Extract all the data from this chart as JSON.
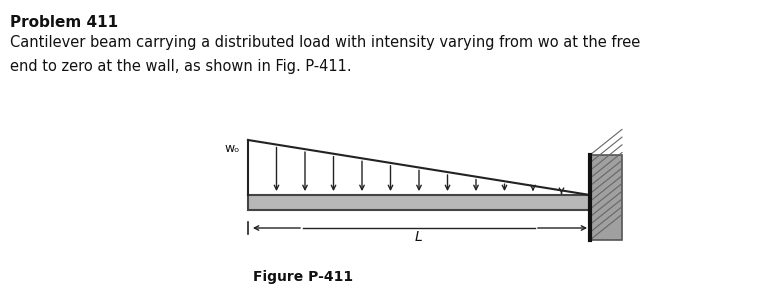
{
  "title": "Problem 411",
  "desc1": "Cantilever beam carrying a distributed load with intensity varying from wo at the free",
  "desc2": "end to zero at the wall, as shown in Fig. P-411.",
  "caption": "Figure P-411",
  "bg_color": "#ffffff",
  "text_color": "#111111",
  "arrow_color": "#222222",
  "beam_color": "#b8b8b8",
  "beam_edge_color": "#444444",
  "wall_face_color": "#a0a0a0",
  "wall_edge_color": "#555555",
  "wall_line_color": "#111111",
  "wo_label": "wₒ",
  "L_label": "L",
  "num_arrows": 11
}
